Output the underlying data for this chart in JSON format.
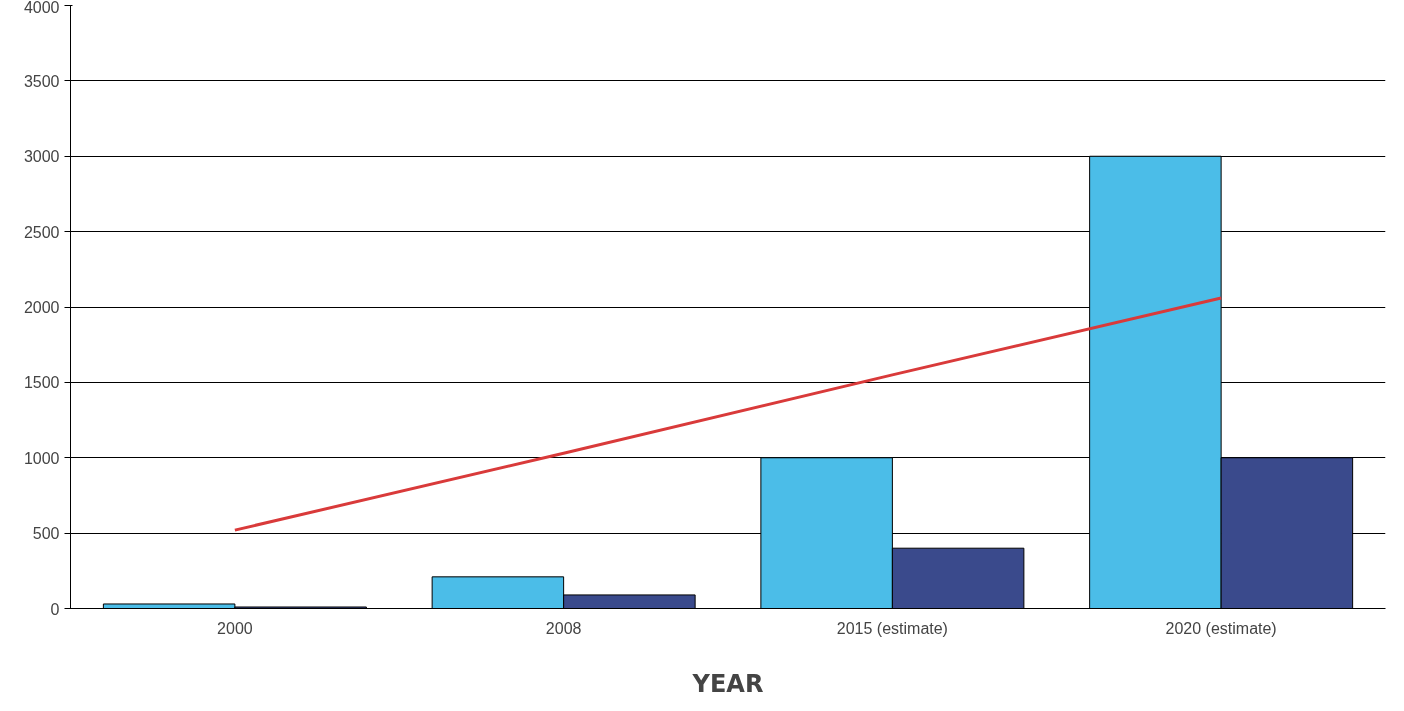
{
  "chart_data": {
    "type": "bar",
    "xlabel": "YEAR",
    "categories": [
      "2000",
      "2008",
      "2015 (estimate)",
      "2020 (estimate)"
    ],
    "series": [
      {
        "color": "#4bbde8",
        "values": [
          30,
          210,
          1000,
          3000
        ]
      },
      {
        "color": "#3a4a8c",
        "values": [
          10,
          90,
          400,
          1000
        ]
      },
      {
        "type": "line",
        "color": "#d93a3a",
        "values": [
          520,
          1030,
          1550,
          2060
        ]
      }
    ],
    "ylim": [
      0,
      4000
    ],
    "yticks": [
      0,
      500,
      1000,
      1500,
      2000,
      2500,
      3000,
      3500,
      4000
    ],
    "grid": "y"
  }
}
